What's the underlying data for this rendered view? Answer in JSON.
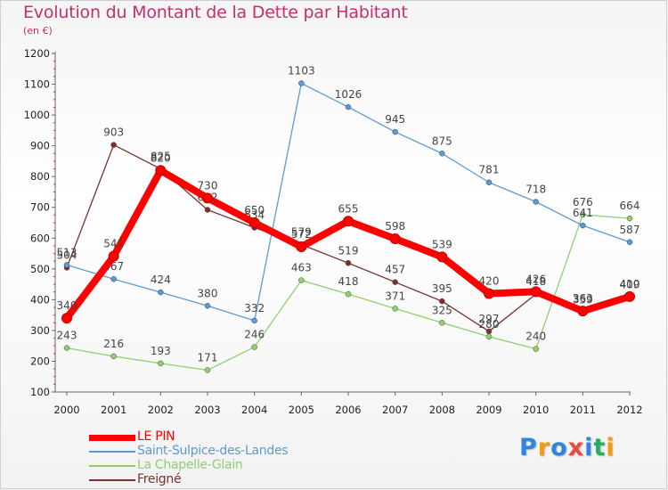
{
  "title": "Evolution du Montant de la Dette par Habitant",
  "subtitle": "(en €)",
  "chart_data": {
    "type": "line",
    "title": "Evolution du Montant de la Dette par Habitant",
    "ylabel": "(en €)",
    "xlabel": "",
    "x": [
      "2000",
      "2001",
      "2002",
      "2003",
      "2004",
      "2005",
      "2006",
      "2007",
      "2008",
      "2009",
      "2010",
      "2011",
      "2012"
    ],
    "ylim": [
      100,
      1200
    ],
    "yticks": [
      100,
      200,
      300,
      400,
      500,
      600,
      700,
      800,
      900,
      1000,
      1100,
      1200
    ],
    "grid": false,
    "legend": "bottom-left",
    "series": [
      {
        "name": "Freigné",
        "color": "#7b2f2f",
        "values": [
          504,
          903,
          825,
          692,
          634,
          579,
          519,
          457,
          395,
          297,
          418,
          359,
          409
        ]
      },
      {
        "name": "La Chapelle-Glain",
        "color": "#8fd16c",
        "values": [
          243,
          216,
          193,
          171,
          246,
          463,
          418,
          371,
          325,
          280,
          240,
          676,
          664
        ]
      },
      {
        "name": "Saint-Sulpice-des-Landes",
        "color": "#5b9bd5",
        "values": [
          513,
          467,
          424,
          380,
          332,
          1103,
          1026,
          945,
          875,
          781,
          718,
          641,
          587
        ]
      },
      {
        "name": "LE PIN",
        "color": "#ff0000",
        "values": [
          340,
          541,
          820,
          730,
          650,
          572,
          655,
          598,
          539,
          420,
          426,
          363,
          410
        ]
      }
    ]
  },
  "legend_items": [
    {
      "label": "LE PIN",
      "color": "#ff0000"
    },
    {
      "label": "Saint-Sulpice-des-Landes",
      "color": "#5b9bd5"
    },
    {
      "label": "La Chapelle-Glain",
      "color": "#8fd16c"
    },
    {
      "label": "Freigné",
      "color": "#7b2f2f"
    }
  ],
  "brand": {
    "text": "Proxiti",
    "letter_colors": [
      "#2e86de",
      "#f39c12",
      "#2e86de",
      "#e74c3c",
      "#2e86de",
      "#27ae60",
      "#f39c12"
    ]
  }
}
